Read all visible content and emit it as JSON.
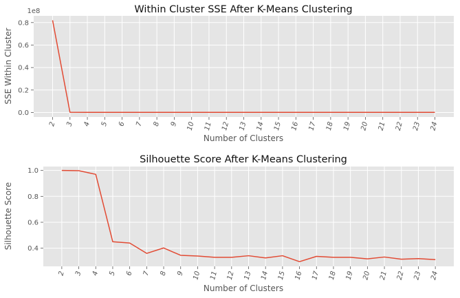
{
  "colors": {
    "line": "#e24a33",
    "plot_background": "#e5e5e5",
    "grid": "#ffffff"
  },
  "chart_data": [
    {
      "type": "line",
      "title": "Within Cluster SSE After K-Means Clustering",
      "xlabel": "Number of Clusters",
      "ylabel": "SSE Within Cluster",
      "y_offset_label": "1e8",
      "x": [
        2,
        3,
        4,
        5,
        6,
        7,
        8,
        9,
        10,
        11,
        12,
        13,
        14,
        15,
        16,
        17,
        18,
        19,
        20,
        21,
        22,
        23,
        24
      ],
      "series": [
        {
          "values": [
            0.82,
            0.002,
            0.001,
            0.001,
            0.001,
            0.001,
            0.001,
            0.001,
            0.001,
            0.001,
            0.001,
            0.001,
            0.001,
            0.001,
            0.001,
            0.001,
            0.001,
            0.001,
            0.001,
            0.001,
            0.001,
            0.001,
            0.001
          ]
        }
      ],
      "yticks": [
        "0.0",
        "0.2",
        "0.4",
        "0.6",
        "0.8"
      ],
      "ylim": [
        -0.04,
        0.86
      ],
      "grid": true,
      "xtick_rotation": "75deg italic"
    },
    {
      "type": "line",
      "title": "Silhouette Score After K-Means Clustering",
      "xlabel": "Number of Clusters",
      "ylabel": "Silhouette Score",
      "x": [
        2,
        3,
        4,
        5,
        6,
        7,
        8,
        9,
        10,
        11,
        12,
        13,
        14,
        15,
        16,
        17,
        18,
        19,
        20,
        21,
        22,
        23,
        24
      ],
      "series": [
        {
          "values": [
            1.0,
            0.998,
            0.97,
            0.45,
            0.44,
            0.36,
            0.402,
            0.345,
            0.34,
            0.33,
            0.33,
            0.342,
            0.325,
            0.342,
            0.296,
            0.337,
            0.33,
            0.33,
            0.318,
            0.332,
            0.315,
            0.32,
            0.312
          ]
        }
      ],
      "yticks": [
        "0.4",
        "0.6",
        "0.8",
        "1.0"
      ],
      "ylim": [
        0.26,
        1.03
      ],
      "grid": true,
      "xtick_rotation": "75deg italic"
    }
  ]
}
